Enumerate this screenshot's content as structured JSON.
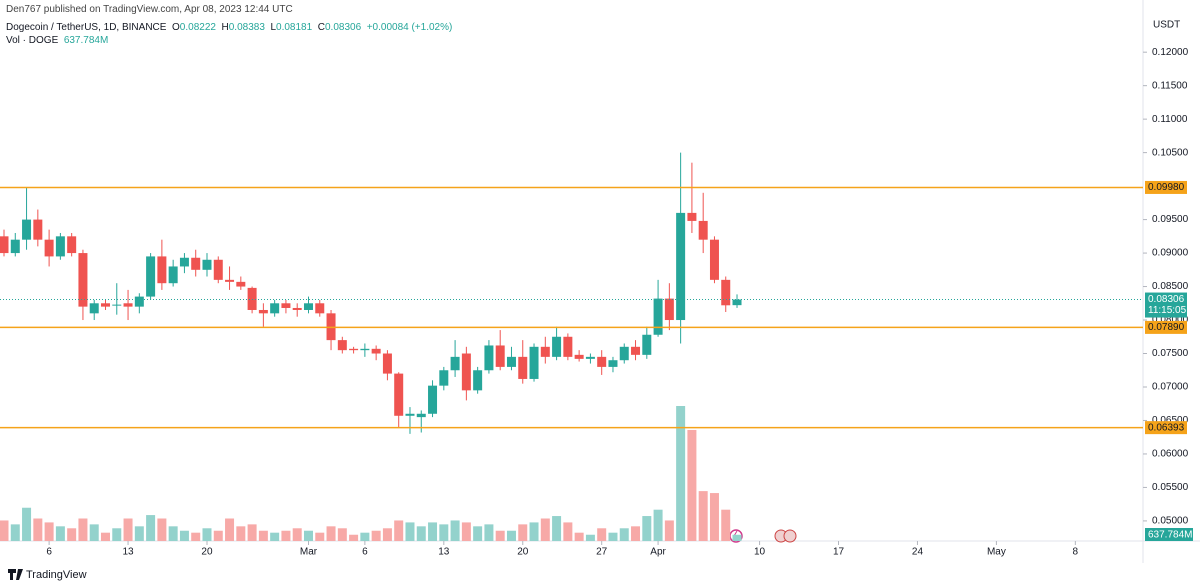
{
  "header": {
    "publisher": "Den767 published on TradingView.com, Apr 08, 2023 12:44 UTC",
    "ohlc_labels": [
      "O",
      "H",
      "L",
      "C"
    ],
    "change": "+0.00084 (+1.02%)",
    "brand": "TradingView"
  },
  "chart_data": {
    "type": "candlestick",
    "title": "Dogecoin / TetherUS, 1D, BINANCE",
    "currency": "USDT",
    "countdown": "11:15:05",
    "up_color": "#26a69a",
    "down_color": "#ef5350",
    "up_volume_color": "#93d2cc",
    "down_volume_color": "#f7a9a7",
    "level_color": "#f5a31a",
    "x": [
      "2023-02-02",
      "2023-02-03",
      "2023-02-04",
      "2023-02-05",
      "2023-02-06",
      "2023-02-07",
      "2023-02-08",
      "2023-02-09",
      "2023-02-10",
      "2023-02-11",
      "2023-02-12",
      "2023-02-13",
      "2023-02-14",
      "2023-02-15",
      "2023-02-16",
      "2023-02-17",
      "2023-02-18",
      "2023-02-19",
      "2023-02-20",
      "2023-02-21",
      "2023-02-22",
      "2023-02-23",
      "2023-02-24",
      "2023-02-25",
      "2023-02-26",
      "2023-02-27",
      "2023-02-28",
      "2023-03-01",
      "2023-03-02",
      "2023-03-03",
      "2023-03-04",
      "2023-03-05",
      "2023-03-06",
      "2023-03-07",
      "2023-03-08",
      "2023-03-09",
      "2023-03-10",
      "2023-03-11",
      "2023-03-12",
      "2023-03-13",
      "2023-03-14",
      "2023-03-15",
      "2023-03-16",
      "2023-03-17",
      "2023-03-18",
      "2023-03-19",
      "2023-03-20",
      "2023-03-21",
      "2023-03-22",
      "2023-03-23",
      "2023-03-24",
      "2023-03-25",
      "2023-03-26",
      "2023-03-27",
      "2023-03-28",
      "2023-03-29",
      "2023-03-30",
      "2023-03-31",
      "2023-04-01",
      "2023-04-02",
      "2023-04-03",
      "2023-04-04",
      "2023-04-05",
      "2023-04-06",
      "2023-04-07",
      "2023-04-08"
    ],
    "open": [
      0.0925,
      0.09,
      0.092,
      0.095,
      0.092,
      0.0895,
      0.0925,
      0.09,
      0.081,
      0.0825,
      0.0822,
      0.0825,
      0.082,
      0.0835,
      0.0895,
      0.0855,
      0.088,
      0.0893,
      0.0875,
      0.089,
      0.086,
      0.0857,
      0.0848,
      0.0815,
      0.081,
      0.0825,
      0.0818,
      0.0815,
      0.0825,
      0.081,
      0.077,
      0.0757,
      0.0755,
      0.0757,
      0.075,
      0.072,
      0.0657,
      0.0655,
      0.066,
      0.0702,
      0.0725,
      0.075,
      0.0695,
      0.0725,
      0.0762,
      0.073,
      0.0745,
      0.0712,
      0.076,
      0.0745,
      0.0775,
      0.0748,
      0.0742,
      0.0745,
      0.073,
      0.074,
      0.076,
      0.0748,
      0.0778,
      0.0832,
      0.08,
      0.096,
      0.0948,
      0.092,
      0.086,
      0.08222
    ],
    "high": [
      0.0935,
      0.093,
      0.0998,
      0.0965,
      0.0935,
      0.093,
      0.093,
      0.0905,
      0.083,
      0.083,
      0.0855,
      0.0845,
      0.084,
      0.09,
      0.092,
      0.089,
      0.09,
      0.0905,
      0.09,
      0.0895,
      0.088,
      0.0865,
      0.085,
      0.0825,
      0.083,
      0.083,
      0.0825,
      0.0835,
      0.083,
      0.0815,
      0.0775,
      0.076,
      0.0765,
      0.0762,
      0.0755,
      0.0722,
      0.067,
      0.0665,
      0.071,
      0.073,
      0.077,
      0.076,
      0.073,
      0.077,
      0.0785,
      0.076,
      0.077,
      0.0765,
      0.0775,
      0.079,
      0.078,
      0.0755,
      0.075,
      0.0755,
      0.0745,
      0.0765,
      0.077,
      0.079,
      0.086,
      0.0855,
      0.105,
      0.1035,
      0.099,
      0.0925,
      0.0865,
      0.08383
    ],
    "low": [
      0.0895,
      0.0895,
      0.0905,
      0.091,
      0.088,
      0.089,
      0.0895,
      0.08,
      0.08,
      0.0815,
      0.0808,
      0.08,
      0.081,
      0.083,
      0.0845,
      0.085,
      0.087,
      0.0865,
      0.0865,
      0.0855,
      0.0845,
      0.0845,
      0.081,
      0.079,
      0.0805,
      0.081,
      0.0805,
      0.081,
      0.0805,
      0.0755,
      0.075,
      0.075,
      0.0745,
      0.074,
      0.071,
      0.064,
      0.063,
      0.0632,
      0.0655,
      0.0695,
      0.0715,
      0.068,
      0.069,
      0.072,
      0.0725,
      0.0725,
      0.0705,
      0.0708,
      0.0735,
      0.074,
      0.074,
      0.0738,
      0.0735,
      0.0718,
      0.0722,
      0.0735,
      0.074,
      0.0742,
      0.0775,
      0.0785,
      0.0765,
      0.093,
      0.09,
      0.0855,
      0.0812,
      0.08181
    ],
    "close": [
      0.09,
      0.092,
      0.095,
      0.092,
      0.0895,
      0.0925,
      0.09,
      0.082,
      0.0825,
      0.082,
      0.0823,
      0.082,
      0.0835,
      0.0895,
      0.0855,
      0.088,
      0.0893,
      0.0875,
      0.089,
      0.086,
      0.0857,
      0.085,
      0.0815,
      0.081,
      0.0825,
      0.0818,
      0.0815,
      0.0825,
      0.081,
      0.077,
      0.0755,
      0.0755,
      0.0757,
      0.075,
      0.072,
      0.0657,
      0.066,
      0.066,
      0.0702,
      0.0725,
      0.0745,
      0.0695,
      0.0725,
      0.0762,
      0.073,
      0.0745,
      0.0712,
      0.076,
      0.0745,
      0.0775,
      0.0745,
      0.0742,
      0.0745,
      0.073,
      0.074,
      0.076,
      0.0748,
      0.0778,
      0.0832,
      0.08,
      0.096,
      0.0948,
      0.092,
      0.086,
      0.0822,
      0.08306
    ],
    "volume": {
      "name": "Vol · DOGE",
      "values": [
        2100,
        1700,
        3400,
        2300,
        1900,
        1500,
        1300,
        2300,
        1700,
        850,
        1300,
        2300,
        1500,
        2650,
        2300,
        1500,
        1050,
        850,
        1300,
        1050,
        2300,
        1500,
        1700,
        1050,
        850,
        1050,
        1300,
        1050,
        850,
        1500,
        1300,
        640,
        850,
        1050,
        1300,
        2100,
        1900,
        1500,
        1900,
        1700,
        2100,
        1900,
        1500,
        1700,
        1050,
        1050,
        1700,
        1900,
        2300,
        2550,
        1900,
        850,
        640,
        1300,
        850,
        1300,
        1500,
        2550,
        3200,
        2100,
        13800,
        11350,
        5100,
        4900,
        3200,
        637.784
      ],
      "value_labels": [
        null,
        null,
        null,
        null,
        null,
        null,
        null,
        null,
        null,
        null,
        null,
        null,
        null,
        null,
        null,
        null,
        null,
        null,
        null,
        null,
        null,
        null,
        null,
        null,
        null,
        null,
        null,
        null,
        null,
        null,
        null,
        null,
        null,
        null,
        null,
        null,
        null,
        null,
        null,
        null,
        null,
        null,
        null,
        null,
        null,
        null,
        null,
        null,
        null,
        null,
        null,
        null,
        null,
        null,
        null,
        null,
        null,
        null,
        null,
        null,
        null,
        null,
        null,
        null,
        null,
        "637.784M"
      ]
    },
    "levels": [
      {
        "value": 0.0998,
        "label": "0.09980"
      },
      {
        "value": 0.0789,
        "label": "0.07890"
      },
      {
        "value": 0.06393,
        "label": "0.06393"
      }
    ],
    "ylim": [
      0.047,
      0.1263
    ],
    "yticks": [
      {
        "value": 0.12,
        "label": "0.12000"
      },
      {
        "value": 0.115,
        "label": "0.11500"
      },
      {
        "value": 0.11,
        "label": "0.11000"
      },
      {
        "value": 0.105,
        "label": "0.10500"
      },
      {
        "value": 0.095,
        "label": "0.09500"
      },
      {
        "value": 0.09,
        "label": "0.09000"
      },
      {
        "value": 0.085,
        "label": "0.08500"
      },
      {
        "value": 0.08,
        "label": "0.08000"
      },
      {
        "value": 0.075,
        "label": "0.07500"
      },
      {
        "value": 0.07,
        "label": "0.07000"
      },
      {
        "value": 0.065,
        "label": "0.06500"
      },
      {
        "value": 0.06,
        "label": "0.06000"
      },
      {
        "value": 0.055,
        "label": "0.05500"
      },
      {
        "value": 0.05,
        "label": "0.05000"
      }
    ],
    "xlim": [
      "2023-02-02",
      "2023-05-14"
    ],
    "xticks": [
      {
        "value": "2023-02-06",
        "label": "6"
      },
      {
        "value": "2023-02-13",
        "label": "13"
      },
      {
        "value": "2023-02-20",
        "label": "20"
      },
      {
        "value": "2023-03-01",
        "label": "Mar"
      },
      {
        "value": "2023-03-06",
        "label": "6"
      },
      {
        "value": "2023-03-13",
        "label": "13"
      },
      {
        "value": "2023-03-20",
        "label": "20"
      },
      {
        "value": "2023-03-27",
        "label": "27"
      },
      {
        "value": "2023-04-01",
        "label": "Apr"
      },
      {
        "value": "2023-04-10",
        "label": "10"
      },
      {
        "value": "2023-04-17",
        "label": "17"
      },
      {
        "value": "2023-04-24",
        "label": "24"
      },
      {
        "value": "2023-05-01",
        "label": "May"
      },
      {
        "value": "2023-05-08",
        "label": "8"
      }
    ]
  }
}
